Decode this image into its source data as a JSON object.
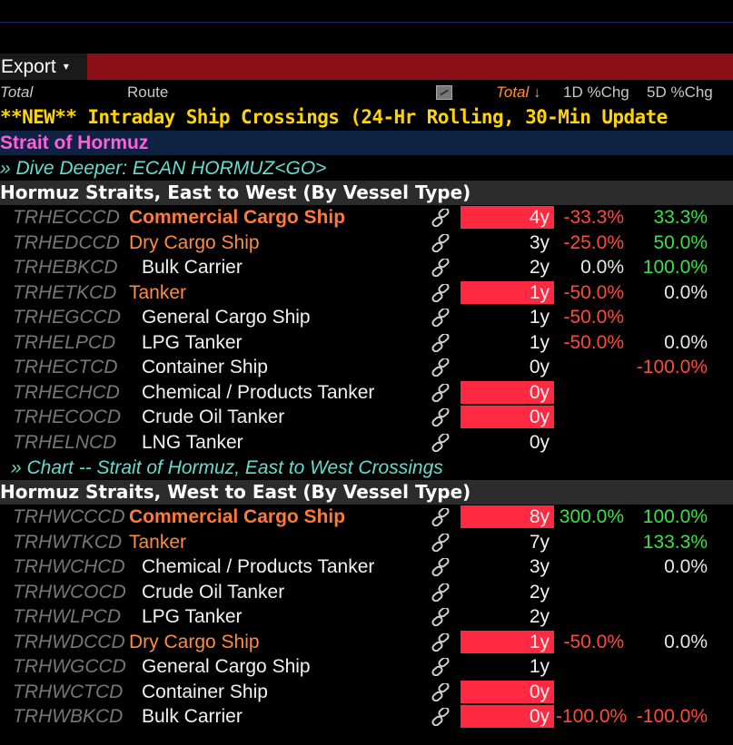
{
  "toolbar": {
    "export_label": "Export",
    "caret": "▾"
  },
  "header": {
    "col_total_left": "Total",
    "col_route": "Route",
    "col_total_sort": "Total ↓",
    "col_1d": "1D %Chg",
    "col_5d": "5D %Chg"
  },
  "news_line": "**NEW** Intraday Ship Crossings (24-Hr Rolling, 30-Min Update",
  "strait_title": "Strait of Hormuz",
  "dive_link": "» Dive Deeper: ECAN HORMUZ<GO>",
  "section1": {
    "title": "Hormuz Straits, East to West (By Vessel Type)",
    "rows": [
      {
        "code": "TRHECCCD",
        "name": "Commercial Cargo Ship",
        "level": 1,
        "style": "primary",
        "bar": true,
        "total": "4y",
        "d1": "-33.3%",
        "d1c": "neg",
        "d5": "33.3%",
        "d5c": "pos"
      },
      {
        "code": "TRHEDCCD",
        "name": "Dry Cargo Ship",
        "level": 1,
        "style": "orange",
        "bar": false,
        "total": "3y",
        "d1": "-25.0%",
        "d1c": "neg",
        "d5": "50.0%",
        "d5c": "pos"
      },
      {
        "code": "TRHEBKCD",
        "name": "Bulk Carrier",
        "level": 2,
        "style": "",
        "bar": false,
        "total": "2y",
        "d1": "0.0%",
        "d1c": "zero",
        "d5": "100.0%",
        "d5c": "pos"
      },
      {
        "code": "TRHETKCD",
        "name": "Tanker",
        "level": 1,
        "style": "orange",
        "bar": true,
        "total": "1y",
        "d1": "-50.0%",
        "d1c": "neg",
        "d5": "0.0%",
        "d5c": "zero"
      },
      {
        "code": "TRHEGCCD",
        "name": "General Cargo Ship",
        "level": 2,
        "style": "",
        "bar": false,
        "total": "1y",
        "d1": "-50.0%",
        "d1c": "neg",
        "d5": "",
        "d5c": "zero"
      },
      {
        "code": "TRHELPCD",
        "name": "LPG Tanker",
        "level": 2,
        "style": "",
        "bar": false,
        "total": "1y",
        "d1": "-50.0%",
        "d1c": "neg",
        "d5": "0.0%",
        "d5c": "zero"
      },
      {
        "code": "TRHECTCD",
        "name": "Container Ship",
        "level": 2,
        "style": "",
        "bar": false,
        "total": "0y",
        "d1": "",
        "d1c": "zero",
        "d5": "-100.0%",
        "d5c": "neg"
      },
      {
        "code": "TRHECHCD",
        "name": "Chemical / Products Tanker",
        "level": 2,
        "style": "",
        "bar": true,
        "total": "0y",
        "d1": "",
        "d1c": "zero",
        "d5": "",
        "d5c": "zero"
      },
      {
        "code": "TRHECOCD",
        "name": "Crude Oil Tanker",
        "level": 2,
        "style": "",
        "bar": true,
        "total": "0y",
        "d1": "",
        "d1c": "zero",
        "d5": "",
        "d5c": "zero"
      },
      {
        "code": "TRHELNCD",
        "name": "LNG Tanker",
        "level": 2,
        "style": "",
        "bar": false,
        "total": "0y",
        "d1": "",
        "d1c": "zero",
        "d5": "",
        "d5c": "zero"
      }
    ]
  },
  "chart_link": "» Chart -- Strait of Hormuz, East to West Crossings",
  "section2": {
    "title": "Hormuz Straits, West to East (By Vessel Type)",
    "rows": [
      {
        "code": "TRHWCCCD",
        "name": "Commercial Cargo Ship",
        "level": 1,
        "style": "primary",
        "bar": true,
        "total": "8y",
        "d1": "300.0%",
        "d1c": "pos",
        "d5": "100.0%",
        "d5c": "pos"
      },
      {
        "code": "TRHWTKCD",
        "name": "Tanker",
        "level": 1,
        "style": "orange",
        "bar": false,
        "total": "7y",
        "d1": "",
        "d1c": "zero",
        "d5": "133.3%",
        "d5c": "pos"
      },
      {
        "code": "TRHWCHCD",
        "name": "Chemical / Products Tanker",
        "level": 2,
        "style": "",
        "bar": false,
        "total": "3y",
        "d1": "",
        "d1c": "zero",
        "d5": "0.0%",
        "d5c": "zero"
      },
      {
        "code": "TRHWCOCD",
        "name": "Crude Oil Tanker",
        "level": 2,
        "style": "",
        "bar": false,
        "total": "2y",
        "d1": "",
        "d1c": "zero",
        "d5": "",
        "d5c": "zero"
      },
      {
        "code": "TRHWLPCD",
        "name": "LPG Tanker",
        "level": 2,
        "style": "",
        "bar": false,
        "total": "2y",
        "d1": "",
        "d1c": "zero",
        "d5": "",
        "d5c": "zero"
      },
      {
        "code": "TRHWDCCD",
        "name": "Dry Cargo Ship",
        "level": 1,
        "style": "orange",
        "bar": true,
        "total": "1y",
        "d1": "-50.0%",
        "d1c": "neg",
        "d5": "0.0%",
        "d5c": "zero"
      },
      {
        "code": "TRHWGCCD",
        "name": "General Cargo Ship",
        "level": 2,
        "style": "",
        "bar": false,
        "total": "1y",
        "d1": "",
        "d1c": "zero",
        "d5": "",
        "d5c": "zero"
      },
      {
        "code": "TRHWCTCD",
        "name": "Container Ship",
        "level": 2,
        "style": "",
        "bar": true,
        "total": "0y",
        "d1": "",
        "d1c": "zero",
        "d5": "",
        "d5c": "zero"
      },
      {
        "code": "TRHWBKCD",
        "name": "Bulk Carrier",
        "level": 2,
        "style": "",
        "bar": true,
        "total": "0y",
        "d1": "-100.0%",
        "d1c": "neg",
        "d5": "-100.0%",
        "d5c": "neg"
      }
    ]
  },
  "colors": {
    "bar": "#ff2a42",
    "negative": "#ff4a3a",
    "positive": "#39e048",
    "toolbar": "#8a0f17",
    "title_bar": "#0e2344"
  }
}
